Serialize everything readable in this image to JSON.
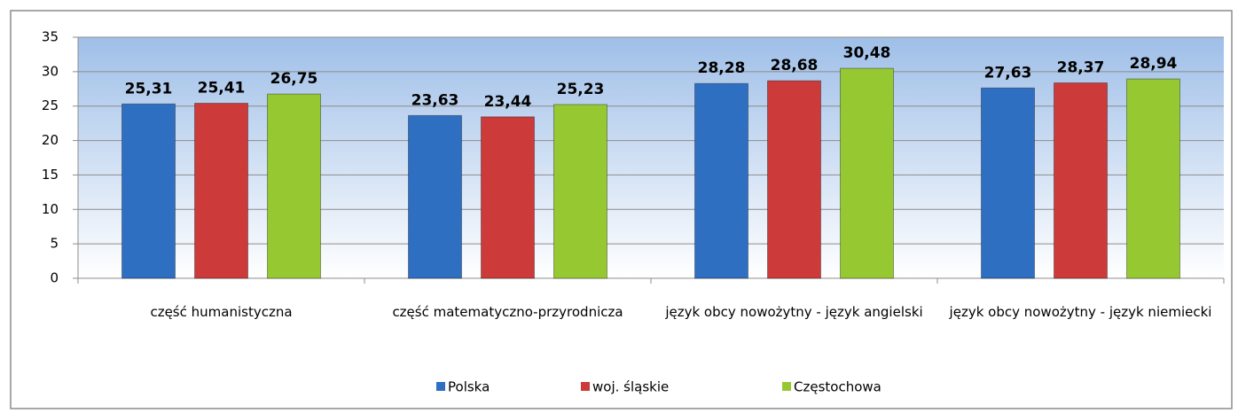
{
  "chart_data": {
    "type": "bar",
    "categories": [
      "część humanistyczna",
      "część matematyczno-przyrodnicza",
      "język obcy nowożytny - język angielski",
      "język obcy nowożytny - język niemiecki"
    ],
    "series": [
      {
        "name": "Polska",
        "color": "#2f6fc2",
        "values": [
          25.31,
          23.63,
          28.28,
          27.63
        ],
        "value_labels": [
          "25,31",
          "23,63",
          "28,28",
          "27,63"
        ]
      },
      {
        "name": "woj. śląskie",
        "color": "#cc3a3a",
        "values": [
          25.41,
          23.44,
          28.68,
          28.37
        ],
        "value_labels": [
          "25,41",
          "23,44",
          "28,68",
          "28,37"
        ]
      },
      {
        "name": "Częstochowa",
        "color": "#96c832",
        "values": [
          26.75,
          25.23,
          30.48,
          28.94
        ],
        "value_labels": [
          "26,75",
          "25,23",
          "30,48",
          "28,94"
        ]
      }
    ],
    "ylim": [
      0,
      35
    ],
    "yticks": [
      0,
      5,
      10,
      15,
      20,
      25,
      30,
      35
    ],
    "grid": true,
    "legend": "bottom"
  }
}
